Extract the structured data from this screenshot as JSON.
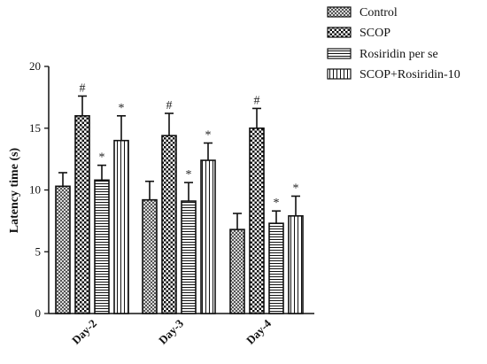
{
  "chart_data": {
    "type": "bar",
    "title": "",
    "xlabel": "",
    "ylabel": "Latency time (s)",
    "ylim": [
      0,
      20
    ],
    "yticks": [
      0,
      5,
      10,
      15,
      20
    ],
    "categories": [
      "Day-2",
      "Day-3",
      "Day-4"
    ],
    "series": [
      {
        "name": "Control",
        "pattern": "checker",
        "values": [
          10.3,
          9.2,
          6.8
        ],
        "errors": [
          1.1,
          1.5,
          1.3
        ],
        "marks": [
          "",
          "",
          ""
        ]
      },
      {
        "name": "SCOP",
        "pattern": "cross",
        "values": [
          16.0,
          14.4,
          15.0
        ],
        "errors": [
          1.6,
          1.8,
          1.6
        ],
        "marks": [
          "#",
          "#",
          "#"
        ]
      },
      {
        "name": "Rosiridin per se",
        "pattern": "hlines",
        "values": [
          10.8,
          9.1,
          7.3
        ],
        "errors": [
          1.2,
          1.5,
          1.0
        ],
        "marks": [
          "*",
          "*",
          "*"
        ]
      },
      {
        "name": "SCOP+Rosiridin-10",
        "pattern": "vlines",
        "values": [
          14.0,
          12.4,
          7.9
        ],
        "errors": [
          2.0,
          1.4,
          1.6
        ],
        "marks": [
          "*",
          "*",
          "*"
        ]
      }
    ],
    "legend_position": "top-right",
    "grid": false,
    "colors": {
      "bar_stroke": "#111111",
      "axis": "#111111"
    }
  }
}
